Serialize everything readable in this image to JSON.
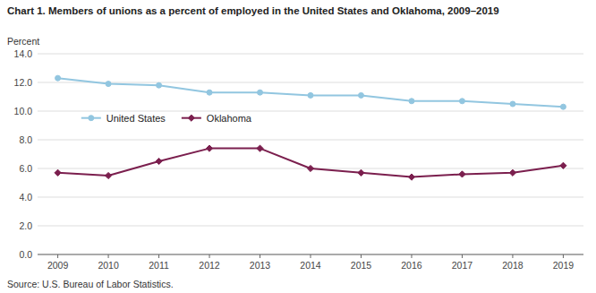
{
  "chart_data": {
    "type": "line",
    "title": "Chart 1.  Members of unions as a percent of employed in the United States and  Oklahoma, 2009–2019",
    "ylabel": "Percent",
    "annotations": [
      "Source: U.S. Bureau of Labor Statistics."
    ],
    "x": [
      2009,
      2010,
      2011,
      2012,
      2013,
      2014,
      2015,
      2016,
      2017,
      2018,
      2019
    ],
    "xlim": [
      2008.6,
      2019.4
    ],
    "xticks": [
      2009,
      2010,
      2011,
      2012,
      2013,
      2014,
      2015,
      2016,
      2017,
      2018,
      2019
    ],
    "ylim": [
      0,
      14.0
    ],
    "yticks": [
      {
        "value": 0.0,
        "label": "0.0"
      },
      {
        "value": 2.0,
        "label": "2.0"
      },
      {
        "value": 4.0,
        "label": "4.0"
      },
      {
        "value": 6.0,
        "label": "6.0"
      },
      {
        "value": 8.0,
        "label": "8.0"
      },
      {
        "value": 10.0,
        "label": "10.0"
      },
      {
        "value": 12.0,
        "label": "12.0"
      },
      {
        "value": 14.0,
        "label": "14.0"
      }
    ],
    "grid": true,
    "legend": "upper left",
    "series": [
      {
        "name": "United States",
        "color": "#92C6E0",
        "marker": "circle",
        "values": [
          12.3,
          11.9,
          11.8,
          11.3,
          11.3,
          11.1,
          11.1,
          10.7,
          10.7,
          10.5,
          10.3
        ]
      },
      {
        "name": "Oklahoma",
        "color": "#7B1F4E",
        "marker": "diamond",
        "values": [
          5.7,
          5.5,
          6.5,
          7.4,
          7.4,
          6.0,
          5.7,
          5.4,
          5.6,
          5.7,
          6.2
        ]
      }
    ]
  }
}
